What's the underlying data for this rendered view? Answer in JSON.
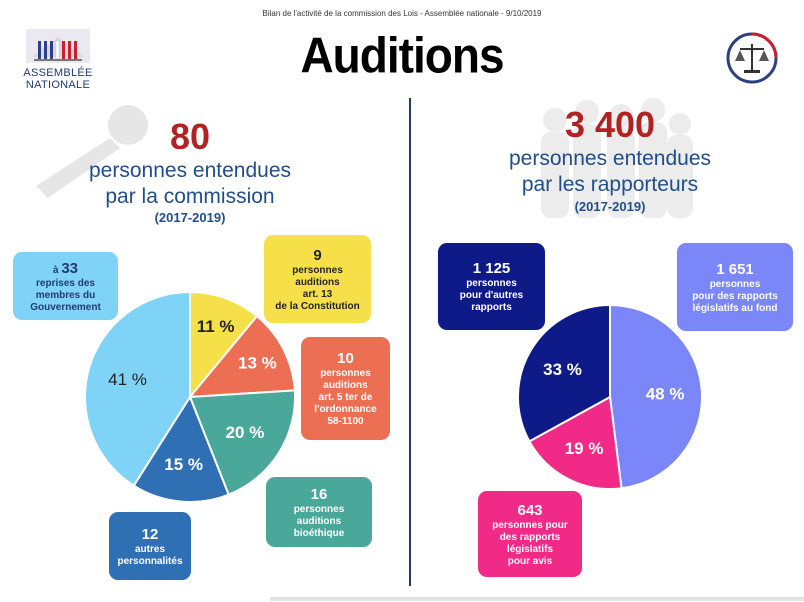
{
  "header": {
    "caption": "Bilan de l'activité de la commission des Lois - Assemblée nationale - 9/10/2019",
    "title": "Auditions",
    "logo_line1": "ASSEMBLÉE",
    "logo_line2": "NATIONALE"
  },
  "left": {
    "big_number": "80",
    "subtitle_line1": "personnes entendues",
    "subtitle_line2": "par la commission",
    "period": "(2017-2019)",
    "boxes": {
      "gouvernement": {
        "prefix": "à",
        "number": "33",
        "line1": "reprises des",
        "line2": "membres du",
        "line3": "Gouvernement"
      },
      "constitution": {
        "number": "9",
        "line1": "personnes",
        "line2": "auditions",
        "line3": "art. 13",
        "line4": "de la Constitution"
      },
      "ordonnance": {
        "number": "10",
        "line1": "personnes",
        "line2": "auditions",
        "line3": "art. 5 ter de",
        "line4": "l'ordonnance",
        "line5": "58-1100"
      },
      "bioethique": {
        "number": "16",
        "line1": "personnes",
        "line2": "auditions",
        "line3": "bioéthique"
      },
      "autres": {
        "number": "12",
        "line1": "autres",
        "line2": "personnalités"
      }
    }
  },
  "right": {
    "big_number": "3 400",
    "subtitle_line1": "personnes entendues",
    "subtitle_line2": "par les rapporteurs",
    "period": "(2017-2019)",
    "boxes": {
      "autres_rapports": {
        "number": "1 125",
        "line1": "personnes",
        "line2": "pour d'autres",
        "line3": "rapports"
      },
      "fond": {
        "number": "1 651",
        "line1": "personnes",
        "line2": "pour des rapports",
        "line3": "législatifs au fond"
      },
      "avis": {
        "number": "643",
        "line1": "personnes pour",
        "line2": "des rapports",
        "line3": "législatifs",
        "line4": "pour avis"
      }
    }
  },
  "colors": {
    "gouvernement": "#7fd3f7",
    "constitution": "#f6e04a",
    "ordonnance": "#ec6f54",
    "bioethique": "#4aa89a",
    "autres": "#2f6fb3",
    "autres_rapports": "#0e1a87",
    "fond": "#7b86f9",
    "avis": "#f22a87",
    "title_red": "#b22222",
    "text_blue": "#1f4e8c"
  },
  "chart_data": [
    {
      "type": "pie",
      "labels": [
        "Constitution art. 13",
        "Ordonnance 58-1100",
        "Bioéthique",
        "Autres personnalités",
        "Gouvernement"
      ],
      "values": [
        11,
        13,
        20,
        15,
        41
      ],
      "value_labels": [
        "11 %",
        "13 %",
        "20 %",
        "15 %",
        "41 %"
      ],
      "colors": [
        "#f6e04a",
        "#ec6f54",
        "#4aa89a",
        "#2f6fb3",
        "#7fd3f7"
      ]
    },
    {
      "type": "pie",
      "labels": [
        "Rapports législatifs au fond",
        "Rapports législatifs pour avis",
        "Autres rapports"
      ],
      "values": [
        48,
        19,
        33
      ],
      "value_labels": [
        "48 %",
        "19 %",
        "33 %"
      ],
      "colors": [
        "#7b86f9",
        "#f22a87",
        "#0e1a87"
      ]
    }
  ]
}
